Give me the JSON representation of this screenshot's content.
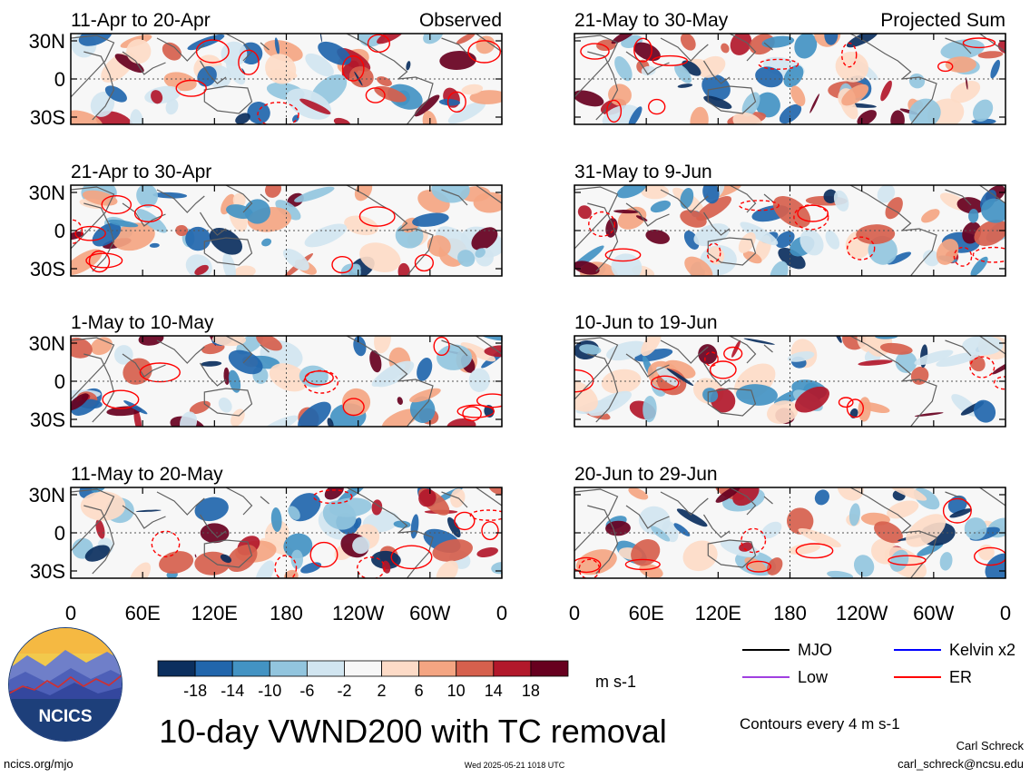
{
  "chart_data": {
    "type": "heatmap",
    "title": "10-day VWND200 with TC removal",
    "units": "m s-1",
    "contour_note": "Contours every 4 m s-1",
    "column_labels": [
      "Observed",
      "Projected Sum"
    ],
    "x_ticks": [
      "0",
      "60E",
      "120E",
      "180",
      "120W",
      "60W",
      "0"
    ],
    "y_ticks": [
      "30N",
      "0",
      "30S"
    ],
    "colorbar": {
      "levels": [
        "-18",
        "-14",
        "-10",
        "-6",
        "-2",
        "2",
        "6",
        "10",
        "14",
        "18"
      ],
      "colors": [
        "#0b2f5e",
        "#2166ac",
        "#4393c3",
        "#92c5de",
        "#d1e5f0",
        "#f7f7f7",
        "#fddbc7",
        "#f4a582",
        "#d6604d",
        "#b2182b",
        "#67001f"
      ]
    },
    "legend": [
      {
        "label": "MJO",
        "color": "#000000"
      },
      {
        "label": "Kelvin x2",
        "color": "#0000ff"
      },
      {
        "label": "Low",
        "color": "#a040e0"
      },
      {
        "label": "ER",
        "color": "#ff0000"
      }
    ],
    "panels": [
      {
        "period": "11-Apr to 20-Apr",
        "column": "Observed"
      },
      {
        "period": "21-Apr to 30-Apr",
        "column": "Observed"
      },
      {
        "period": "1-May to 10-May",
        "column": "Observed"
      },
      {
        "period": "11-May to 20-May",
        "column": "Observed"
      },
      {
        "period": "21-May to 30-May",
        "column": "Projected Sum"
      },
      {
        "period": "31-May to 9-Jun",
        "column": "Projected Sum"
      },
      {
        "period": "10-Jun to 19-Jun",
        "column": "Projected Sum"
      },
      {
        "period": "20-Jun to 29-Jun",
        "column": "Projected Sum"
      }
    ]
  },
  "logo": {
    "text": "NCICS"
  },
  "footer": {
    "site": "ncics.org/mjo",
    "timestamp": "Wed 2025-05-21 1018 UTC",
    "author": "Carl Schreck",
    "email": "carl_schreck@ncsu.edu"
  }
}
